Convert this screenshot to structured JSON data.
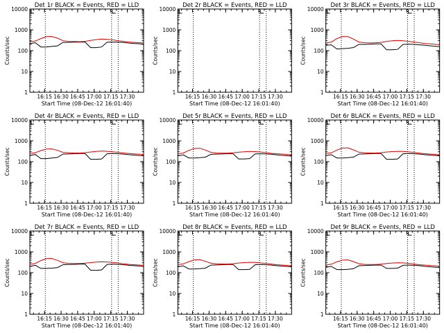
{
  "page": {
    "background": "#ffffff"
  },
  "colors": {
    "events": "#000000",
    "lld": "#dd0000",
    "axis": "#000000"
  },
  "shared_axes": {
    "ylabel": "Counts/sec",
    "xlabel": "Start Time (08-Dec-12 16:01:40)",
    "x_tick_labels": [
      "16:15",
      "16:30",
      "16:45",
      "17:00",
      "17:15",
      "17:30"
    ],
    "y_tick_labels": [
      "1",
      "10",
      "100",
      "1000",
      "10000"
    ]
  },
  "chart_data": [
    {
      "type": "line",
      "title": "Det 1r BLACK = Events, RED = LLD",
      "y_scale": "log",
      "ylim": [
        1,
        10000
      ],
      "xlim_minutes": [
        0,
        103
      ],
      "x": [
        0,
        5,
        10,
        15,
        20,
        25,
        30,
        35,
        40,
        45,
        50,
        55,
        60,
        65,
        70,
        75,
        80,
        85,
        90,
        95,
        100,
        103
      ],
      "series": [
        {
          "name": "Events",
          "color": "#000000",
          "values": [
            220,
            240,
            150,
            150,
            160,
            170,
            250,
            250,
            255,
            260,
            260,
            140,
            140,
            150,
            255,
            260,
            255,
            245,
            230,
            220,
            210,
            205
          ]
        },
        {
          "name": "LLD",
          "color": "#dd0000",
          "values": [
            270,
            290,
            380,
            470,
            480,
            400,
            300,
            280,
            275,
            270,
            280,
            310,
            340,
            360,
            350,
            330,
            300,
            280,
            260,
            250,
            240,
            235
          ]
        }
      ],
      "vlines_minutes": [
        14,
        74,
        80
      ]
    },
    {
      "type": "line",
      "title": "Det 2r BLACK = Events, RED = LLD",
      "y_scale": "log",
      "ylim": [
        1,
        10000
      ],
      "xlim_minutes": [
        0,
        103
      ],
      "x": [],
      "series": [
        {
          "name": "Events",
          "color": "#000000",
          "values": []
        },
        {
          "name": "LLD",
          "color": "#dd0000",
          "values": []
        }
      ],
      "vlines_minutes": [
        14,
        74,
        80
      ]
    },
    {
      "type": "line",
      "title": "Det 3r BLACK = Events, RED = LLD",
      "y_scale": "log",
      "ylim": [
        1,
        10000
      ],
      "xlim_minutes": [
        0,
        103
      ],
      "x": [
        0,
        5,
        10,
        15,
        20,
        25,
        30,
        35,
        40,
        45,
        50,
        55,
        60,
        65,
        70,
        75,
        80,
        85,
        90,
        95,
        100,
        103
      ],
      "series": [
        {
          "name": "Events",
          "color": "#000000",
          "values": [
            180,
            190,
            120,
            125,
            130,
            140,
            200,
            200,
            205,
            210,
            210,
            110,
            110,
            115,
            200,
            205,
            200,
            190,
            180,
            170,
            160,
            155
          ]
        },
        {
          "name": "LLD",
          "color": "#dd0000",
          "values": [
            230,
            260,
            380,
            480,
            470,
            360,
            260,
            240,
            235,
            240,
            250,
            280,
            300,
            310,
            300,
            280,
            260,
            240,
            220,
            210,
            200,
            195
          ]
        }
      ],
      "vlines_minutes": [
        14,
        74,
        80
      ]
    },
    {
      "type": "line",
      "title": "Det 4r BLACK = Events, RED = LLD",
      "y_scale": "log",
      "ylim": [
        1,
        10000
      ],
      "xlim_minutes": [
        0,
        103
      ],
      "x": [
        0,
        5,
        10,
        15,
        20,
        25,
        30,
        35,
        40,
        45,
        50,
        55,
        60,
        65,
        70,
        75,
        80,
        85,
        90,
        95,
        100,
        103
      ],
      "series": [
        {
          "name": "Events",
          "color": "#000000",
          "values": [
            200,
            220,
            140,
            140,
            150,
            160,
            230,
            235,
            240,
            245,
            245,
            130,
            130,
            135,
            240,
            245,
            240,
            230,
            215,
            205,
            195,
            190
          ]
        },
        {
          "name": "LLD",
          "color": "#dd0000",
          "values": [
            250,
            270,
            340,
            400,
            410,
            350,
            280,
            265,
            260,
            260,
            270,
            290,
            310,
            320,
            315,
            300,
            280,
            260,
            245,
            235,
            225,
            220
          ]
        }
      ],
      "vlines_minutes": [
        14,
        74,
        80
      ]
    },
    {
      "type": "line",
      "title": "Det 5r BLACK = Events, RED = LLD",
      "y_scale": "log",
      "ylim": [
        1,
        10000
      ],
      "xlim_minutes": [
        0,
        103
      ],
      "x": [
        0,
        5,
        10,
        15,
        20,
        25,
        30,
        35,
        40,
        45,
        50,
        55,
        60,
        65,
        70,
        75,
        80,
        85,
        90,
        95,
        100,
        103
      ],
      "series": [
        {
          "name": "Events",
          "color": "#000000",
          "values": [
            190,
            210,
            150,
            150,
            155,
            165,
            225,
            230,
            235,
            240,
            240,
            135,
            135,
            140,
            235,
            240,
            235,
            225,
            210,
            200,
            190,
            185
          ]
        },
        {
          "name": "LLD",
          "color": "#dd0000",
          "values": [
            240,
            260,
            350,
            430,
            440,
            360,
            280,
            260,
            255,
            255,
            265,
            285,
            300,
            310,
            305,
            290,
            270,
            250,
            240,
            230,
            220,
            215
          ]
        }
      ],
      "vlines_minutes": [
        14,
        74,
        80
      ]
    },
    {
      "type": "line",
      "title": "Det 6r BLACK = Events, RED = LLD",
      "y_scale": "log",
      "ylim": [
        1,
        10000
      ],
      "xlim_minutes": [
        0,
        103
      ],
      "x": [
        0,
        5,
        10,
        15,
        20,
        25,
        30,
        35,
        40,
        45,
        50,
        55,
        60,
        65,
        70,
        75,
        80,
        85,
        90,
        95,
        100,
        103
      ],
      "series": [
        {
          "name": "Events",
          "color": "#000000",
          "values": [
            195,
            215,
            150,
            150,
            155,
            165,
            230,
            235,
            240,
            245,
            245,
            130,
            130,
            135,
            240,
            245,
            240,
            230,
            215,
            205,
            195,
            190
          ]
        },
        {
          "name": "LLD",
          "color": "#dd0000",
          "values": [
            245,
            265,
            360,
            450,
            460,
            370,
            285,
            265,
            260,
            260,
            270,
            290,
            305,
            315,
            310,
            295,
            275,
            255,
            240,
            230,
            220,
            215
          ]
        }
      ],
      "vlines_minutes": [
        14,
        74,
        80
      ]
    },
    {
      "type": "line",
      "title": "Det 7r BLACK = Events, RED = LLD",
      "y_scale": "log",
      "ylim": [
        1,
        10000
      ],
      "xlim_minutes": [
        0,
        103
      ],
      "x": [
        0,
        5,
        10,
        15,
        20,
        25,
        30,
        35,
        40,
        45,
        50,
        55,
        60,
        65,
        70,
        75,
        80,
        85,
        90,
        95,
        100,
        103
      ],
      "series": [
        {
          "name": "Events",
          "color": "#000000",
          "values": [
            200,
            225,
            160,
            160,
            165,
            175,
            240,
            245,
            250,
            255,
            255,
            130,
            130,
            135,
            250,
            255,
            250,
            240,
            225,
            215,
            205,
            200
          ]
        },
        {
          "name": "LLD",
          "color": "#dd0000",
          "values": [
            250,
            280,
            380,
            470,
            480,
            390,
            300,
            280,
            275,
            275,
            285,
            305,
            320,
            330,
            325,
            310,
            290,
            265,
            250,
            240,
            230,
            225
          ]
        }
      ],
      "vlines_minutes": [
        14,
        74,
        80
      ]
    },
    {
      "type": "line",
      "title": "Det 8r BLACK = Events, RED = LLD",
      "y_scale": "log",
      "ylim": [
        1,
        10000
      ],
      "xlim_minutes": [
        0,
        103
      ],
      "x": [
        0,
        5,
        10,
        15,
        20,
        25,
        30,
        35,
        40,
        45,
        50,
        55,
        60,
        65,
        70,
        75,
        80,
        85,
        90,
        95,
        100,
        103
      ],
      "series": [
        {
          "name": "Events",
          "color": "#000000",
          "values": [
            190,
            210,
            150,
            150,
            155,
            165,
            230,
            235,
            240,
            245,
            245,
            140,
            140,
            145,
            240,
            245,
            240,
            230,
            215,
            205,
            195,
            190
          ]
        },
        {
          "name": "LLD",
          "color": "#dd0000",
          "values": [
            240,
            265,
            340,
            410,
            420,
            350,
            285,
            265,
            260,
            260,
            270,
            290,
            305,
            315,
            310,
            295,
            275,
            255,
            240,
            230,
            220,
            215
          ]
        }
      ],
      "vlines_minutes": [
        14,
        74,
        80
      ]
    },
    {
      "type": "line",
      "title": "Det 9r BLACK = Events, RED = LLD",
      "y_scale": "log",
      "ylim": [
        1,
        10000
      ],
      "xlim_minutes": [
        0,
        103
      ],
      "x": [
        0,
        5,
        10,
        15,
        20,
        25,
        30,
        35,
        40,
        45,
        50,
        55,
        60,
        65,
        70,
        75,
        80,
        85,
        90,
        95,
        100,
        103
      ],
      "series": [
        {
          "name": "Events",
          "color": "#000000",
          "values": [
            180,
            200,
            140,
            140,
            145,
            155,
            215,
            220,
            225,
            230,
            230,
            160,
            160,
            165,
            225,
            230,
            225,
            215,
            200,
            190,
            180,
            175
          ]
        },
        {
          "name": "LLD",
          "color": "#dd0000",
          "values": [
            230,
            255,
            330,
            400,
            410,
            340,
            270,
            250,
            245,
            245,
            255,
            275,
            290,
            300,
            295,
            280,
            260,
            240,
            230,
            220,
            210,
            205
          ]
        }
      ],
      "vlines_minutes": [
        14,
        74,
        80
      ]
    }
  ]
}
